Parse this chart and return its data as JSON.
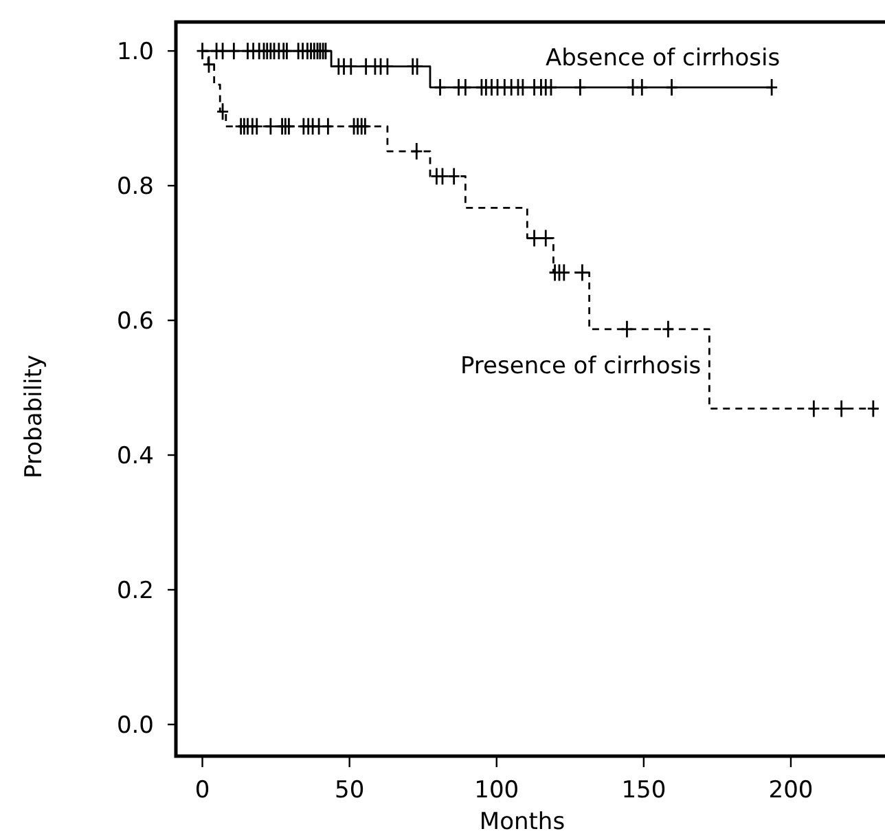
{
  "chart_data": {
    "type": "step",
    "xlabel": "Months",
    "ylabel": "Probability",
    "xlim": [
      -9,
      232
    ],
    "ylim": [
      -0.047,
      1.043
    ],
    "xticks": [
      0,
      50,
      100,
      150,
      200
    ],
    "yticks": [
      {
        "value": 0,
        "label": "0.0"
      },
      {
        "value": 0.2,
        "label": "0.2"
      },
      {
        "value": 0.4,
        "label": "0.4"
      },
      {
        "value": 0.6,
        "label": "0.6"
      },
      {
        "value": 0.8,
        "label": "0.8"
      },
      {
        "value": 1,
        "label": "1.0"
      }
    ],
    "grid": false,
    "series": [
      {
        "name": "Absence of cirrhosis",
        "color": "#000000",
        "line_style": "solid",
        "x": [
          0,
          43.8,
          77.4,
          193.5
        ],
        "values": [
          1,
          0.977,
          0.946,
          0.946
        ]
      },
      {
        "name": "Presence of cirrhosis",
        "color": "#000000",
        "line_style": "dashed",
        "x": [
          0,
          2,
          4,
          6,
          8,
          62.9,
          77.4,
          89.4,
          110.4,
          119.3,
          131.5,
          172.3,
          229.6
        ],
        "values": [
          1,
          0.98,
          0.95,
          0.91,
          0.888,
          0.851,
          0.814,
          0.767,
          0.722,
          0.671,
          0.587,
          0.469,
          0.469
        ]
      },
      {
        "type": "scatter",
        "color": "#000000",
        "marker": "cross",
        "x": [
          0,
          4.8,
          6.9,
          10.7,
          15.4,
          17.3,
          19.3,
          20.9,
          22,
          23.2,
          24.4,
          26,
          27.6,
          28.7,
          32.6,
          34.1,
          35.7,
          36.9,
          38,
          39.1,
          40,
          41,
          41.9,
          46.3,
          48.1,
          50.5,
          55.6,
          58.7,
          60.6,
          62.9,
          71.5,
          73,
          80.8,
          87.1,
          89.4,
          94.9,
          96.4,
          98.3,
          100.3,
          102.7,
          105,
          107.3,
          108.9,
          112.8,
          115.1,
          116.7,
          118.5,
          128.4,
          146.3,
          149.4,
          159.5,
          193.5
        ],
        "values": [
          1,
          1,
          1,
          1,
          1,
          1,
          1,
          1,
          1,
          1,
          1,
          1,
          1,
          1,
          1,
          1,
          1,
          1,
          1,
          1,
          1,
          1,
          1,
          0.977,
          0.977,
          0.977,
          0.977,
          0.977,
          0.977,
          0.977,
          0.977,
          0.977,
          0.946,
          0.946,
          0.946,
          0.946,
          0.946,
          0.946,
          0.946,
          0.946,
          0.946,
          0.946,
          0.946,
          0.946,
          0.946,
          0.946,
          0.946,
          0.946,
          0.946,
          0.946,
          0.946,
          0.946
        ]
      },
      {
        "type": "scatter",
        "color": "#000000",
        "marker": "cross",
        "x": [
          2.2,
          6.9,
          13.1,
          14.2,
          15.4,
          17,
          18.5,
          23.2,
          27.1,
          28.2,
          29.4,
          34.4,
          36,
          37.5,
          39.6,
          42.7,
          51.5,
          52.8,
          54.1,
          55.3,
          72.8,
          79.6,
          81.6,
          85.5,
          112.8,
          116.7,
          119.8,
          121.3,
          122.9,
          129.1,
          144.3,
          158.3,
          207.8,
          217.2,
          228
        ],
        "values": [
          0.98,
          0.91,
          0.888,
          0.888,
          0.888,
          0.888,
          0.888,
          0.888,
          0.888,
          0.888,
          0.888,
          0.888,
          0.888,
          0.888,
          0.888,
          0.888,
          0.888,
          0.888,
          0.888,
          0.888,
          0.851,
          0.814,
          0.814,
          0.814,
          0.722,
          0.722,
          0.671,
          0.671,
          0.671,
          0.671,
          0.587,
          0.587,
          0.469,
          0.469,
          0.469
        ]
      }
    ]
  }
}
